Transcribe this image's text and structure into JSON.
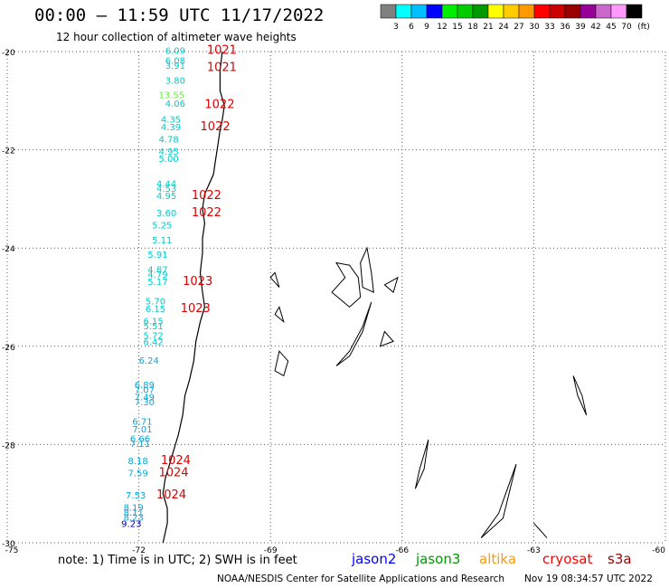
{
  "header": {
    "title": "00:00 – 11:59 UTC 11/17/2022",
    "subtitle": "12 hour collection of altimeter wave heights"
  },
  "legend": {
    "colors": [
      "#808080",
      "#00ffff",
      "#00bfff",
      "#0000ff",
      "#00ee00",
      "#00cc00",
      "#009900",
      "#ffff00",
      "#ffcc00",
      "#ff9900",
      "#ff0000",
      "#cc0000",
      "#990000",
      "#990099",
      "#cc66cc",
      "#ff99ff",
      "#000000"
    ],
    "ticks": [
      "3",
      "6",
      "9",
      "12",
      "15",
      "18",
      "21",
      "24",
      "27",
      "30",
      "33",
      "36",
      "39",
      "42",
      "45",
      "70"
    ],
    "unit": "(ft)"
  },
  "map": {
    "lat_range": [
      -30,
      -20
    ],
    "lon_range": [
      -75,
      -60
    ],
    "lat_labels": [
      "-20",
      "-22",
      "-24",
      "-26",
      "-28",
      "-30"
    ],
    "lon_labels": [
      "-75",
      "-72",
      "-69",
      "-66",
      "-63",
      "-60"
    ],
    "grid": "dotted"
  },
  "wave_heights": [
    {
      "value": "6.09",
      "lat": -20.05,
      "lon": -71.4,
      "color": "#00cccc"
    },
    {
      "value": "6.08",
      "lat": -20.25,
      "lon": -71.4,
      "color": "#00cccc"
    },
    {
      "value": "3.91",
      "lat": -20.35,
      "lon": -71.4,
      "color": "#00cccc"
    },
    {
      "value": "3.80",
      "lat": -20.65,
      "lon": -71.4,
      "color": "#00cccc"
    },
    {
      "value": "13.55",
      "lat": -20.95,
      "lon": -71.55,
      "color": "#66ee44"
    },
    {
      "value": "4.06",
      "lat": -21.12,
      "lon": -71.4,
      "color": "#00cccc"
    },
    {
      "value": "4.35",
      "lat": -21.45,
      "lon": -71.5,
      "color": "#00cccc"
    },
    {
      "value": "4.39",
      "lat": -21.6,
      "lon": -71.5,
      "color": "#00cccc"
    },
    {
      "value": "4.78",
      "lat": -21.85,
      "lon": -71.55,
      "color": "#00cccc"
    },
    {
      "value": "4.95",
      "lat": -22.1,
      "lon": -71.55,
      "color": "#00cccc"
    },
    {
      "value": "5.00",
      "lat": -22.25,
      "lon": -71.55,
      "color": "#00cccc"
    },
    {
      "value": "4.44",
      "lat": -22.75,
      "lon": -71.6,
      "color": "#00cccc"
    },
    {
      "value": "4.53",
      "lat": -22.85,
      "lon": -71.6,
      "color": "#00cccc"
    },
    {
      "value": "4.95",
      "lat": -23.0,
      "lon": -71.6,
      "color": "#00cccc"
    },
    {
      "value": "3.60",
      "lat": -23.35,
      "lon": -71.6,
      "color": "#00cccc"
    },
    {
      "value": "5.25",
      "lat": -23.6,
      "lon": -71.7,
      "color": "#00cccc"
    },
    {
      "value": "5.11",
      "lat": -23.9,
      "lon": -71.7,
      "color": "#00cccc"
    },
    {
      "value": "5.91",
      "lat": -24.2,
      "lon": -71.8,
      "color": "#00cccc"
    },
    {
      "value": "4.87",
      "lat": -24.5,
      "lon": -71.8,
      "color": "#00cccc"
    },
    {
      "value": "4.79",
      "lat": -24.6,
      "lon": -71.8,
      "color": "#00cccc"
    },
    {
      "value": "5.17",
      "lat": -24.75,
      "lon": -71.8,
      "color": "#00cccc"
    },
    {
      "value": "5.70",
      "lat": -25.15,
      "lon": -71.85,
      "color": "#00cccc"
    },
    {
      "value": "6.15",
      "lat": -25.3,
      "lon": -71.85,
      "color": "#00cccc"
    },
    {
      "value": "6.15",
      "lat": -25.55,
      "lon": -71.9,
      "color": "#00cccc"
    },
    {
      "value": "5.51",
      "lat": -25.65,
      "lon": -71.9,
      "color": "#00cccc"
    },
    {
      "value": "5.72",
      "lat": -25.85,
      "lon": -71.9,
      "color": "#00cccc"
    },
    {
      "value": "6.42",
      "lat": -25.98,
      "lon": -71.9,
      "color": "#00cccc"
    },
    {
      "value": "6.24",
      "lat": -26.35,
      "lon": -72.0,
      "color": "#00aadd"
    },
    {
      "value": "6.89",
      "lat": -26.85,
      "lon": -72.1,
      "color": "#00aadd"
    },
    {
      "value": "7.07",
      "lat": -26.95,
      "lon": -72.1,
      "color": "#00aadd"
    },
    {
      "value": "7.49",
      "lat": -27.1,
      "lon": -72.1,
      "color": "#00aadd"
    },
    {
      "value": "7.30",
      "lat": -27.2,
      "lon": -72.1,
      "color": "#00aadd"
    },
    {
      "value": "6.71",
      "lat": -27.6,
      "lon": -72.15,
      "color": "#00aadd"
    },
    {
      "value": "7.01",
      "lat": -27.75,
      "lon": -72.15,
      "color": "#00aadd"
    },
    {
      "value": "6.66",
      "lat": -27.95,
      "lon": -72.2,
      "color": "#00aadd"
    },
    {
      "value": "7.11",
      "lat": -28.05,
      "lon": -72.2,
      "color": "#00aadd"
    },
    {
      "value": "8.18",
      "lat": -28.4,
      "lon": -72.25,
      "color": "#00aadd"
    },
    {
      "value": "7.59",
      "lat": -28.65,
      "lon": -72.25,
      "color": "#00aadd"
    },
    {
      "value": "7.53",
      "lat": -29.1,
      "lon": -72.3,
      "color": "#00aadd"
    },
    {
      "value": "8.19",
      "lat": -29.35,
      "lon": -72.35,
      "color": "#00aadd"
    },
    {
      "value": "8.11",
      "lat": -29.45,
      "lon": -72.35,
      "color": "#00aadd"
    },
    {
      "value": "8.23",
      "lat": -29.55,
      "lon": -72.35,
      "color": "#00aadd"
    },
    {
      "value": "9.23",
      "lat": -29.68,
      "lon": -72.4,
      "color": "#0000cc"
    }
  ],
  "pressure_labels": [
    {
      "value": "1021",
      "lat": -20.05,
      "lon": -70.45
    },
    {
      "value": "1021",
      "lat": -20.4,
      "lon": -70.45
    },
    {
      "value": "1022",
      "lat": -21.15,
      "lon": -70.5
    },
    {
      "value": "1022",
      "lat": -21.6,
      "lon": -70.6
    },
    {
      "value": "1022",
      "lat": -23.0,
      "lon": -70.8
    },
    {
      "value": "1022",
      "lat": -23.35,
      "lon": -70.8
    },
    {
      "value": "1023",
      "lat": -24.75,
      "lon": -71.0
    },
    {
      "value": "1023",
      "lat": -25.3,
      "lon": -71.05
    },
    {
      "value": "1024",
      "lat": -28.4,
      "lon": -71.5
    },
    {
      "value": "1024",
      "lat": -28.65,
      "lon": -71.55
    },
    {
      "value": "1024",
      "lat": -29.1,
      "lon": -71.6
    }
  ],
  "footer": {
    "note": "note: 1) Time is in UTC; 2) SWH is in feet",
    "satellites": [
      {
        "name": "jason2",
        "color": "#0000ff"
      },
      {
        "name": "jason3",
        "color": "#009900"
      },
      {
        "name": "altika",
        "color": "#ff9900"
      },
      {
        "name": "cryosat",
        "color": "#ff0000"
      },
      {
        "name": "s3a",
        "color": "#990000"
      }
    ],
    "credit": "NOAA/NESDIS Center for Satellite Applications and Research",
    "generated": "Nov 19 08:34:57 UTC 2022"
  }
}
